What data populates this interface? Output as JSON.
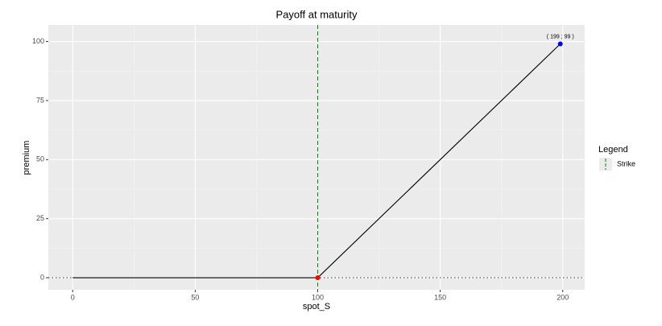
{
  "chart_data": {
    "type": "line",
    "title": "Payoff at maturity",
    "x_label": "spot_S",
    "y_label": "premium",
    "series": [
      {
        "x": [
          0,
          100,
          199
        ],
        "values": [
          0,
          0,
          99
        ],
        "color": "#000000"
      }
    ],
    "points": [
      {
        "x": 100,
        "y": 0,
        "color": "#ff0000"
      },
      {
        "x": 199,
        "y": 99,
        "color": "#0000ff"
      }
    ],
    "annotation": {
      "text": "( 199 ; 99 )",
      "x": 199,
      "y": 99
    },
    "strike": {
      "name": "Strike",
      "x": 100,
      "color": "#1a7a1a"
    },
    "hline": {
      "y": 0
    },
    "legend": {
      "title": "Legend",
      "position": "right"
    },
    "xlim": [
      -9.95,
      208.95
    ],
    "ylim": [
      -5.1,
      107
    ],
    "xticks": [
      0,
      50,
      100,
      150,
      200
    ],
    "yticks": [
      0,
      25,
      50,
      75,
      100
    ],
    "xminor": [
      25,
      75,
      125,
      175
    ],
    "yminor": [
      12.5,
      37.5,
      62.5,
      87.5
    ],
    "grid": true
  }
}
